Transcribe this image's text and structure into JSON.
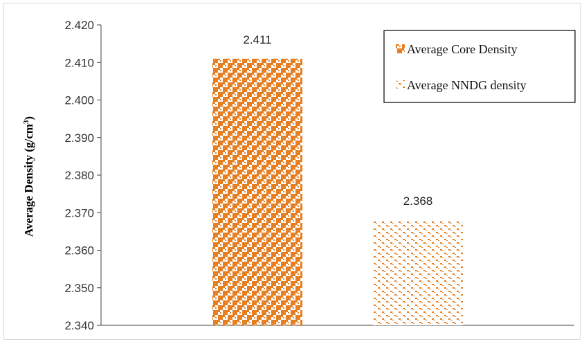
{
  "chart_data": {
    "type": "bar",
    "title": "",
    "xlabel": "",
    "ylabel": "Average Density (g/cm",
    "ylabel_sup": "3",
    "ylabel_close": ")",
    "ylim": [
      2.34,
      2.42
    ],
    "yticks": [
      "2.340",
      "2.350",
      "2.360",
      "2.370",
      "2.380",
      "2.390",
      "2.400",
      "2.410",
      "2.420"
    ],
    "grid": false,
    "legend_position": "top-right",
    "series": [
      {
        "name": "Average Core Density",
        "value": 2.411,
        "label": "2.411",
        "color": "#e67e22",
        "pattern": "checker-dense"
      },
      {
        "name": "Average NNDG density",
        "value": 2.368,
        "label": "2.368",
        "color": "#e67e22",
        "pattern": "checker-sparse"
      }
    ]
  }
}
